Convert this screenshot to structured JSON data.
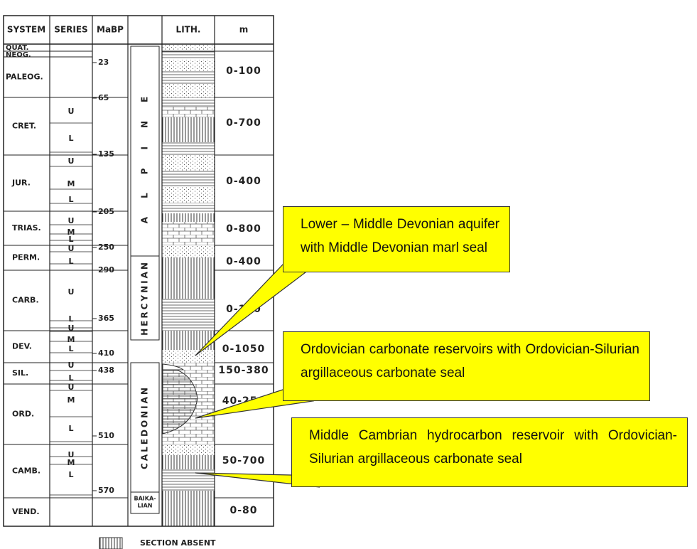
{
  "header": [
    "SYSTEM",
    "SERIES",
    "MaBP",
    "",
    "LITH.",
    "m"
  ],
  "systems": [
    "QUAT.",
    "NEOG.",
    "PALEOG.",
    "CRET.",
    "JUR.",
    "TRIAS.",
    "PERM.",
    "CARB.",
    "DEV.",
    "SIL.",
    "ORD.",
    "CAMB.",
    "VEND."
  ],
  "series": [
    "U",
    "L",
    "U",
    "M",
    "L",
    "U",
    "M",
    "L",
    "U",
    "L",
    "U",
    "L",
    "U",
    "M",
    "L",
    "U",
    "L",
    "U",
    "M",
    "L",
    "U",
    "M",
    "L"
  ],
  "ma": [
    "23",
    "65",
    "135",
    "205",
    "250",
    "290",
    "365",
    "410",
    "438",
    "510",
    "570"
  ],
  "orogenies": [
    "ALPINE",
    "HERCYNIAN",
    "CALEDONIAN",
    "BAIKA-",
    "LIAN"
  ],
  "thickness": [
    "0-100",
    "0-700",
    "0-400",
    "0-800",
    "0-400",
    "0-100",
    "0-1050",
    "150-380",
    "40-250",
    "50-700",
    "0-80"
  ],
  "legend": "SECTION ABSENT",
  "callouts": [
    "Lower – Middle Devonian aquifer with Middle Devonian marl seal",
    "Ordovician carbonate reservoirs with Ordovician-Silurian argillaceous carbonate seal",
    "Middle Cambrian hydrocarbon reservoir with Ordovician-Silurian argillaceous carbonate seal"
  ]
}
